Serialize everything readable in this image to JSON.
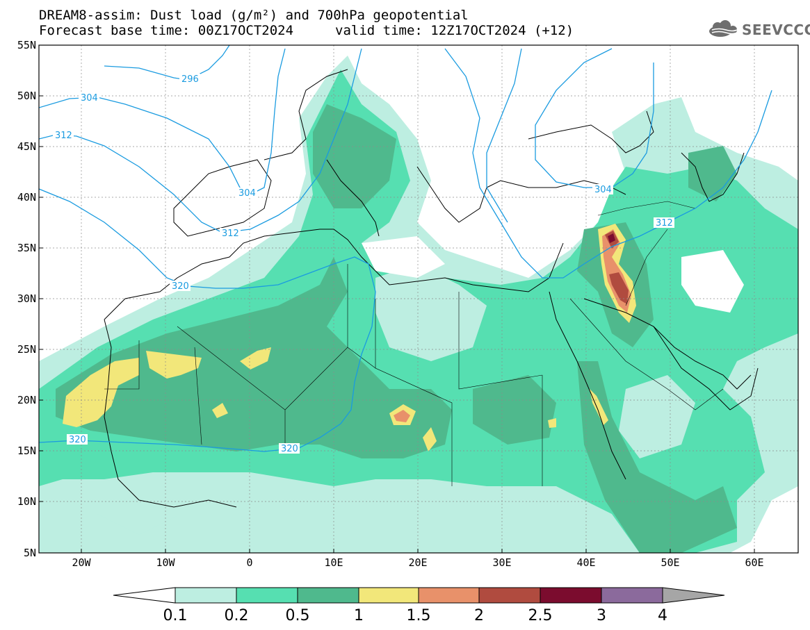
{
  "header": {
    "title_line1": "DREAM8-assim: Dust load (g/m²) and 700hPa geopotential",
    "title_line2": "Forecast base time: 00Z17OCT2024",
    "valid_time": "valid time: 12Z17OCT2024 (+12)",
    "logo_text": "SEEVCCC",
    "logo_icon": "cloud-logo-icon"
  },
  "axes": {
    "lat_labels": [
      "55N",
      "50N",
      "45N",
      "40N",
      "35N",
      "30N",
      "25N",
      "20N",
      "15N",
      "10N",
      "5N"
    ],
    "lon_labels": [
      "20W",
      "10W",
      "0",
      "10E",
      "20E",
      "30E",
      "40E",
      "50E",
      "60E"
    ],
    "lat_range": [
      5,
      55
    ],
    "lon_range": [
      -25,
      65
    ]
  },
  "colors": {
    "dust_0.1": "#bdeee1",
    "dust_0.2": "#56dfb1",
    "dust_0.5": "#4fb98d",
    "dust_1": "#f2e77a",
    "dust_1.5": "#e8916a",
    "dust_2": "#b04b3f",
    "dust_2.5": "#7b0c2e",
    "dust_3": "#8b6a9c",
    "dust_4": "#a6a6a6",
    "contour": "#1a9be0",
    "coast": "#000000"
  },
  "colorbar": {
    "labels": [
      "0.1",
      "0.2",
      "0.5",
      "1",
      "1.5",
      "2",
      "2.5",
      "3",
      "4"
    ],
    "colors": [
      "#bdeee1",
      "#56dfb1",
      "#4fb98d",
      "#f2e77a",
      "#e8916a",
      "#b04b3f",
      "#7b0c2e",
      "#8b6a9c"
    ]
  },
  "contour_labels": [
    "296",
    "304",
    "312",
    "304",
    "312",
    "320",
    "312",
    "304",
    "320",
    "320"
  ]
}
